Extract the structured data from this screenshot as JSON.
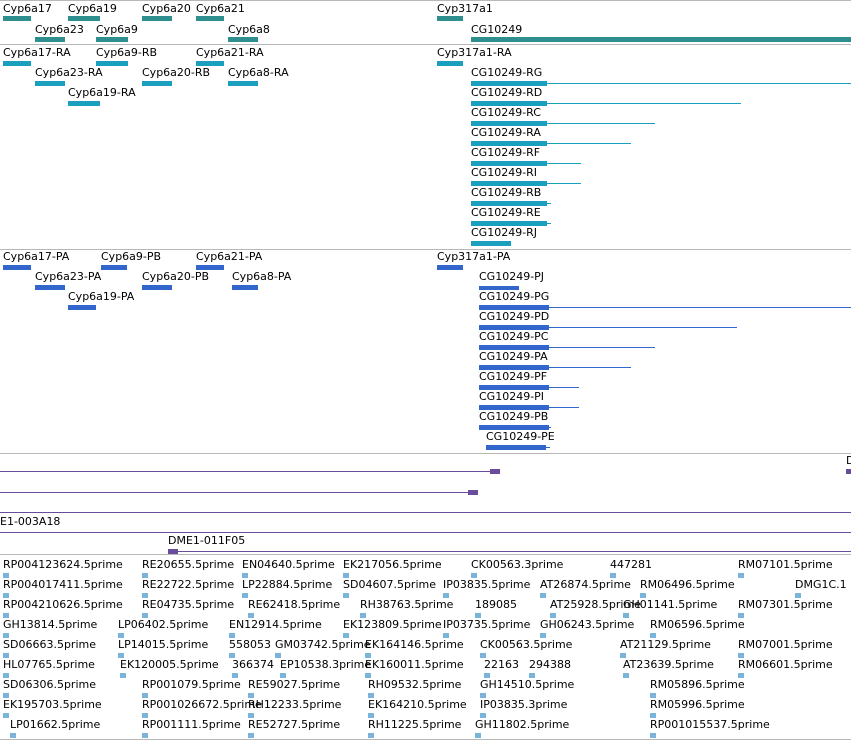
{
  "colors": {
    "gene": "#2f8f8f",
    "rna": "#1a9fbf",
    "protein": "#3366cc",
    "clone": "#6a4c9c",
    "est": "#7ab4d8"
  },
  "genes": {
    "cyp6a17": "Cyp6a17",
    "cyp6a19": "Cyp6a19",
    "cyp6a20": "Cyp6a20",
    "cyp6a21": "Cyp6a21",
    "cyp6a23": "Cyp6a23",
    "cyp6a9": "Cyp6a9",
    "cyp6a8": "Cyp6a8",
    "cyp317a1": "Cyp317a1",
    "cg10249": "CG10249"
  },
  "transcripts": {
    "cyp6a17": "Cyp6a17-RA",
    "cyp6a9": "Cyp6a9-RB",
    "cyp6a21": "Cyp6a21-RA",
    "cyp6a23": "Cyp6a23-RA",
    "cyp6a20": "Cyp6a20-RB",
    "cyp6a8": "Cyp6a8-RA",
    "cyp6a19": "Cyp6a19-RA",
    "cyp317a1": "Cyp317a1-RA",
    "rg": "CG10249-RG",
    "rd": "CG10249-RD",
    "rc": "CG10249-RC",
    "ra": "CG10249-RA",
    "rf": "CG10249-RF",
    "ri": "CG10249-RI",
    "rb": "CG10249-RB",
    "re": "CG10249-RE",
    "rj": "CG10249-RJ"
  },
  "proteins": {
    "cyp6a17": "Cyp6a17-PA",
    "cyp6a9": "Cyp6a9-PB",
    "cyp6a21": "Cyp6a21-PA",
    "cyp6a23": "Cyp6a23-PA",
    "cyp6a20": "Cyp6a20-PB",
    "cyp6a8": "Cyp6a8-PA",
    "cyp6a19": "Cyp6a19-PA",
    "cyp317a1": "Cyp317a1-PA",
    "pj": "CG10249-PJ",
    "pg": "CG10249-PG",
    "pd": "CG10249-PD",
    "pc": "CG10249-PC",
    "pa": "CG10249-PA",
    "pf": "CG10249-PF",
    "pi": "CG10249-PI",
    "pb": "CG10249-PB",
    "pe": "CG10249-PE"
  },
  "clones": {
    "clipped": "D",
    "e1": "E1-003A18",
    "dme1": "DME1-011F05"
  },
  "ests": {
    "c1": [
      "RP004123624.5prime",
      "RP004017411.5prime",
      "RP004210626.5prime",
      "GH13814.5prime",
      "SD06663.5prime",
      "HL07765.5prime",
      "SD06306.5prime",
      "EK195703.5prime",
      "LP01662.5prime"
    ],
    "c2": [
      "RE20655.5prime",
      "RE22722.5prime",
      "RE04735.5prime",
      "LP06402.5prime",
      "LP14015.5prime",
      "EK120005.5prime",
      "RP001079.5prime",
      "RP001026672.5prime",
      "RP001111.5prime"
    ],
    "c3": [
      "EN04640.5prime",
      "LP22884.5prime",
      "RE62418.5prime",
      "EN12914.5prime",
      "558053",
      "366374",
      "RE59027.5prime",
      "RH12233.5prime",
      "RE52727.5prime"
    ],
    "c3b": [
      "GM03742.5prime",
      "EP10538.3prime"
    ],
    "c4": [
      "EK217056.5prime",
      "SD04607.5prime",
      "RH38763.5prime",
      "EK123809.5prime",
      "EK164146.5prime",
      "EK160011.5prime",
      "RH09532.5prime",
      "EK164210.5prime",
      "RH11225.5prime"
    ],
    "c5": [
      "CK00563.3prime",
      "IP03835.5prime",
      "189085",
      "IP03735.5prime",
      "CK00563.5prime",
      "22163",
      "GH14510.5prime",
      "IP03835.3prime",
      "GH11802.5prime"
    ],
    "c5b": [
      "294388"
    ],
    "c6": [
      "447281",
      "AT26874.5prime",
      "AT25928.5prime",
      "GH06243.5prime",
      "AT21129.5prime",
      "AT23639.5prime"
    ],
    "c7": [
      "RM06496.5prime",
      "GH01141.5prime",
      "RM06596.5prime"
    ],
    "c8": [
      "RM07101.5prime",
      "DMG1C.1",
      "RM07301.5prime",
      "RM07001.5prime",
      "RM06601.5prime",
      "RM05896.5prime",
      "RM05996.5prime",
      "RP001015537.5prime"
    ]
  }
}
